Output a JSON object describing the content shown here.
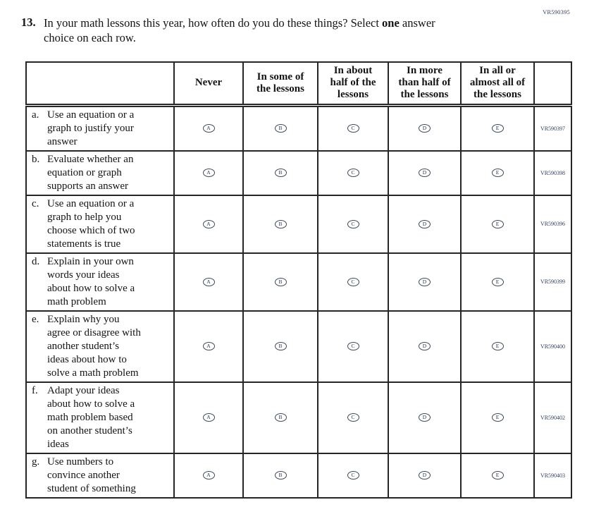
{
  "page": {
    "top_right_code": "VR590395",
    "question_number": "13.",
    "question_before_bold": "In your math lessons this year, how often do you do these things? Select ",
    "question_bold_word": "one",
    "question_after_bold": " answer\nchoice on each row."
  },
  "table": {
    "column_headers": {
      "statement": "",
      "never": "Never",
      "some": "In some of\nthe lessons",
      "about_half": "In about\nhalf of the\nlessons",
      "more_than_half": "In more\nthan half of\nthe lessons",
      "all_or_almost": "In all or\nalmost all of\nthe lessons",
      "code": ""
    },
    "options": [
      "A",
      "B",
      "C",
      "D",
      "E"
    ],
    "rows": [
      {
        "letter": "a.",
        "statement": "Use an equation or a\ngraph to justify your\nanswer",
        "code": "VR590397"
      },
      {
        "letter": "b.",
        "statement": "Evaluate whether an\nequation or graph\nsupports an answer",
        "code": "VR590398"
      },
      {
        "letter": "c.",
        "statement": "Use an equation or a\ngraph to help you\nchoose which of two\nstatements is true",
        "code": "VR590396"
      },
      {
        "letter": "d.",
        "statement": "Explain in your own\nwords your ideas\nabout how to solve a\nmath problem",
        "code": "VR590399"
      },
      {
        "letter": "e.",
        "statement": "Explain why you\nagree or disagree with\nanother student’s\nideas about how to\nsolve a math problem",
        "code": "VR590400"
      },
      {
        "letter": "f.",
        "statement": "Adapt your ideas\nabout how to solve a\nmath problem based\non another student’s\nideas",
        "code": "VR590402"
      },
      {
        "letter": "g.",
        "statement": "Use numbers to\nconvince another\nstudent of something",
        "code": "VR590403"
      }
    ]
  }
}
